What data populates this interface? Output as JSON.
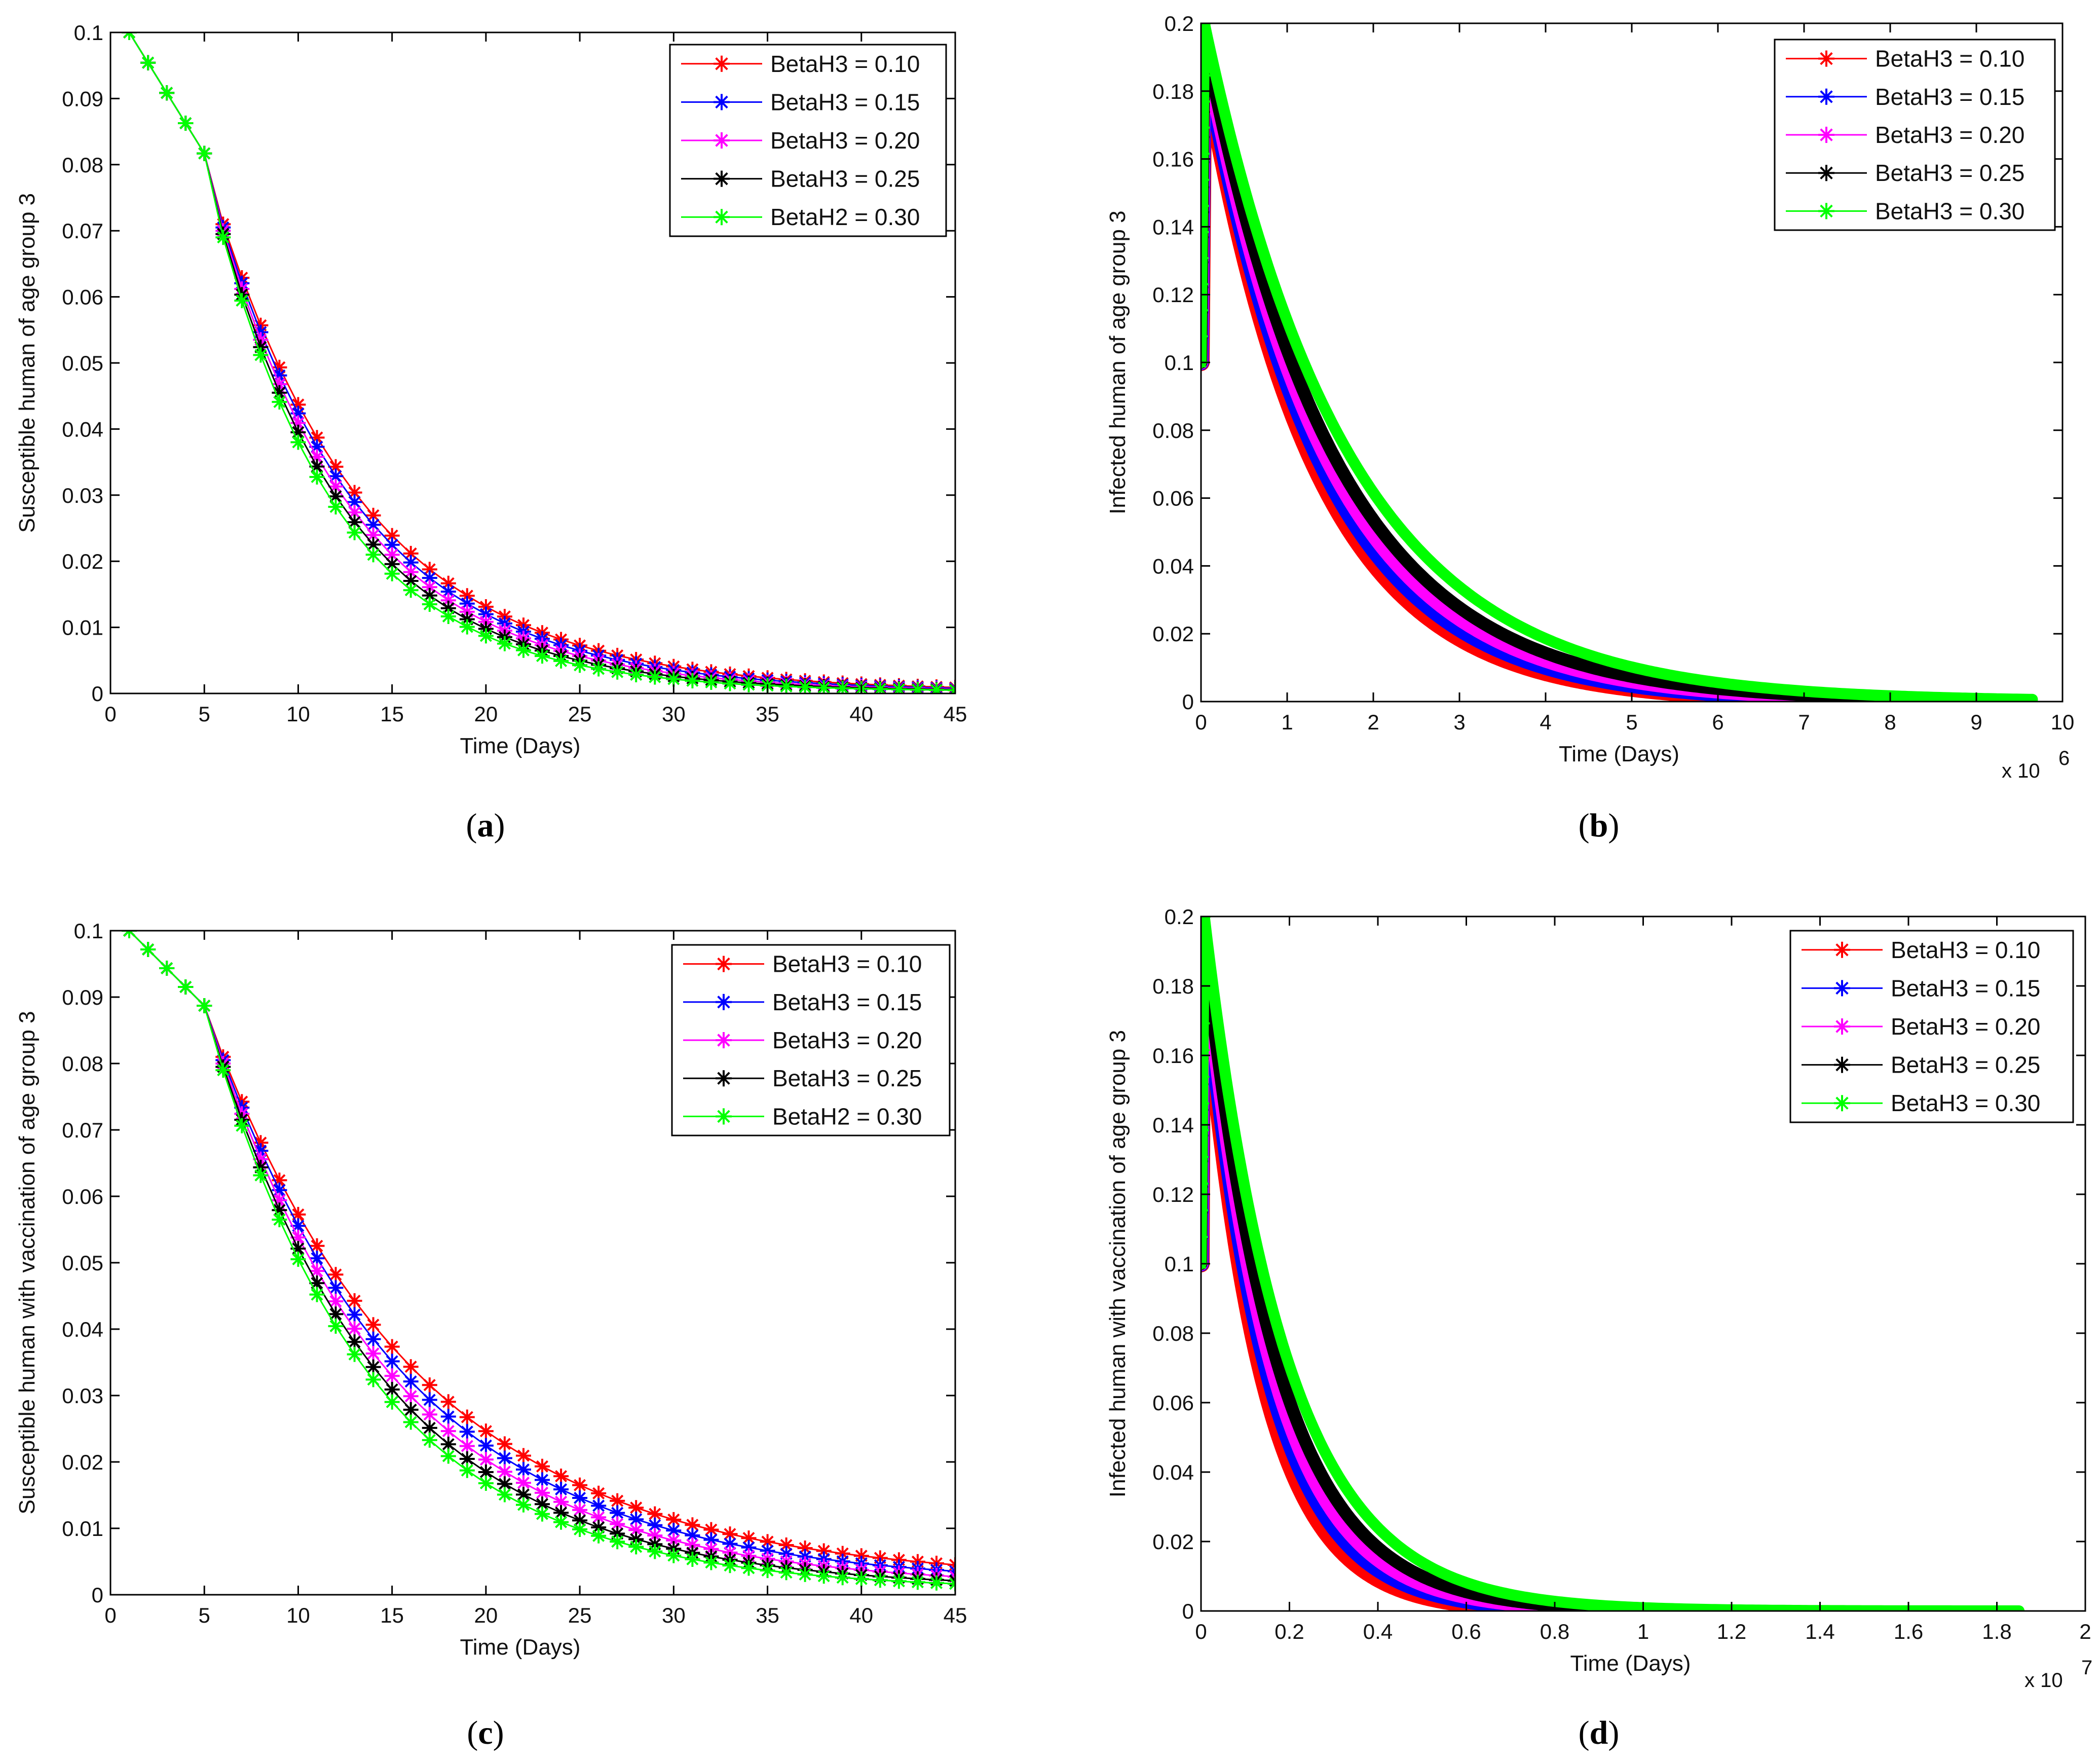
{
  "figure": {
    "panels": [
      {
        "id": "a",
        "caption_open": "(",
        "caption_letter": "a",
        "caption_close": ")"
      },
      {
        "id": "b",
        "caption_open": "(",
        "caption_letter": "b",
        "caption_close": ")"
      },
      {
        "id": "c",
        "caption_open": "(",
        "caption_letter": "c",
        "caption_close": ")"
      },
      {
        "id": "d",
        "caption_open": "(",
        "caption_letter": "d",
        "caption_close": ")"
      }
    ]
  },
  "colors": {
    "red": "#ff0000",
    "blue": "#0000ff",
    "magenta": "#ff00ff",
    "black": "#000000",
    "green": "#00ff00"
  },
  "chart_data": [
    {
      "panel": "a",
      "type": "line",
      "marker": "star",
      "xlabel": "Time (Days)",
      "ylabel": "Susceptible human  of age group 3",
      "xlim": [
        0,
        45
      ],
      "ylim": [
        0,
        0.1
      ],
      "xticks": [
        "0",
        "5",
        "10",
        "15",
        "20",
        "25",
        "30",
        "35",
        "40",
        "45"
      ],
      "yticks": [
        "0",
        "0.01",
        "0.02",
        "0.03",
        "0.04",
        "0.05",
        "0.06",
        "0.07",
        "0.08",
        "0.09",
        "0.1"
      ],
      "exponent_label": "",
      "legend_position": "top-right",
      "series": [
        {
          "name": "BetaH3 = 0.10",
          "color": "#ff0000",
          "model": "expo",
          "x0": 1,
          "x_end": 45,
          "n_points": 45,
          "y_start": 0.1,
          "y_knee": 0.0817,
          "x_knee": 5,
          "y_knee2": 0.071,
          "k": 0.122,
          "y_end": 0.0003
        },
        {
          "name": "BetaH3 = 0.15",
          "color": "#0000ff",
          "model": "expo",
          "x0": 1,
          "x_end": 45,
          "n_points": 45,
          "y_start": 0.1,
          "y_knee": 0.0817,
          "x_knee": 5,
          "y_knee2": 0.0705,
          "k": 0.128,
          "y_end": 0.0003
        },
        {
          "name": "BetaH3 = 0.20",
          "color": "#ff00ff",
          "model": "expo",
          "x0": 1,
          "x_end": 45,
          "n_points": 45,
          "y_start": 0.1,
          "y_knee": 0.0817,
          "x_knee": 5,
          "y_knee2": 0.07,
          "k": 0.135,
          "y_end": 0.0003
        },
        {
          "name": "BetaH3 = 0.25",
          "color": "#000000",
          "model": "expo",
          "x0": 1,
          "x_end": 45,
          "n_points": 45,
          "y_start": 0.1,
          "y_knee": 0.0817,
          "x_knee": 5,
          "y_knee2": 0.0695,
          "k": 0.142,
          "y_end": 0.0003
        },
        {
          "name": "BetaH2 = 0.30",
          "color": "#00ff00",
          "model": "expo",
          "x0": 1,
          "x_end": 45,
          "n_points": 45,
          "y_start": 0.1,
          "y_knee": 0.0817,
          "x_knee": 5,
          "y_knee2": 0.069,
          "k": 0.15,
          "y_end": 0.0003
        }
      ]
    },
    {
      "panel": "b",
      "type": "line",
      "marker": "star",
      "xlabel": "Time (Days)",
      "ylabel": "Infected human of age group 3",
      "xlim": [
        0,
        10
      ],
      "ylim": [
        0,
        0.2
      ],
      "xticks": [
        "0",
        "1",
        "2",
        "3",
        "4",
        "5",
        "6",
        "7",
        "8",
        "9",
        "10"
      ],
      "yticks": [
        "0",
        "0.02",
        "0.04",
        "0.06",
        "0.08",
        "0.1",
        "0.12",
        "0.14",
        "0.16",
        "0.18",
        "0.2"
      ],
      "exponent_label": "x 10",
      "exponent_power": "6",
      "legend_position": "top-right",
      "series": [
        {
          "name": "BetaH3 = 0.10",
          "color": "#ff0000",
          "model": "dense",
          "x_end": 7.6,
          "y_peak": 0.19,
          "k": 0.78
        },
        {
          "name": "BetaH3 = 0.15",
          "color": "#0000ff",
          "model": "dense",
          "x_end": 7.9,
          "y_peak": 0.192,
          "k": 0.74
        },
        {
          "name": "BetaH3 = 0.20",
          "color": "#ff00ff",
          "model": "dense",
          "x_end": 8.2,
          "y_peak": 0.194,
          "k": 0.7
        },
        {
          "name": "BetaH3 = 0.25",
          "color": "#000000",
          "model": "dense",
          "x_end": 8.8,
          "y_peak": 0.196,
          "k": 0.66
        },
        {
          "name": "BetaH3 = 0.30",
          "color": "#00ff00",
          "model": "dense",
          "x_end": 9.65,
          "y_peak": 0.2,
          "k": 0.6
        }
      ]
    },
    {
      "panel": "c",
      "type": "line",
      "marker": "star",
      "xlabel": "Time (Days)",
      "ylabel": "Susceptible human with vaccination of age group 3",
      "xlim": [
        0,
        45
      ],
      "ylim": [
        0,
        0.1
      ],
      "xticks": [
        "0",
        "5",
        "10",
        "15",
        "20",
        "25",
        "30",
        "35",
        "40",
        "45"
      ],
      "yticks": [
        "0",
        "0.01",
        "0.02",
        "0.03",
        "0.04",
        "0.05",
        "0.06",
        "0.07",
        "0.08",
        "0.09",
        "0.1"
      ],
      "exponent_label": "",
      "legend_position": "top-right",
      "series": [
        {
          "name": "BetaH3 = 0.10",
          "color": "#ff0000",
          "model": "expo",
          "x0": 1,
          "x_end": 45,
          "n_points": 45,
          "y_start": 0.1,
          "y_knee": 0.0887,
          "x_knee": 5,
          "y_knee2": 0.081,
          "k": 0.0895,
          "y_end": 0.0021
        },
        {
          "name": "BetaH3 = 0.15",
          "color": "#0000ff",
          "model": "expo",
          "x0": 1,
          "x_end": 45,
          "n_points": 45,
          "y_start": 0.1,
          "y_knee": 0.0887,
          "x_knee": 5,
          "y_knee2": 0.0805,
          "k": 0.095,
          "y_end": 0.0016
        },
        {
          "name": "BetaH3 = 0.20",
          "color": "#ff00ff",
          "model": "expo",
          "x0": 1,
          "x_end": 45,
          "n_points": 45,
          "y_start": 0.1,
          "y_knee": 0.0887,
          "x_knee": 5,
          "y_knee2": 0.08,
          "k": 0.101,
          "y_end": 0.0012
        },
        {
          "name": "BetaH3 = 0.25",
          "color": "#000000",
          "model": "expo",
          "x0": 1,
          "x_end": 45,
          "n_points": 45,
          "y_start": 0.1,
          "y_knee": 0.0887,
          "x_knee": 5,
          "y_knee2": 0.0795,
          "k": 0.107,
          "y_end": 0.0009
        },
        {
          "name": "BetaH2 = 0.30",
          "color": "#00ff00",
          "model": "expo",
          "x0": 1,
          "x_end": 45,
          "n_points": 45,
          "y_start": 0.1,
          "y_knee": 0.0887,
          "x_knee": 5,
          "y_knee2": 0.079,
          "k": 0.113,
          "y_end": 0.0007
        }
      ]
    },
    {
      "panel": "d",
      "type": "line",
      "marker": "star",
      "xlabel": "Time (Days)",
      "ylabel": "Infected human with vaccination of age group 3",
      "xlim": [
        0,
        2
      ],
      "ylim": [
        0,
        0.2
      ],
      "xticks": [
        "0",
        "0.2",
        "0.4",
        "0.6",
        "0.8",
        "1",
        "1.2",
        "1.4",
        "1.6",
        "1.8",
        "2"
      ],
      "yticks": [
        "0",
        "0.02",
        "0.04",
        "0.06",
        "0.08",
        "0.1",
        "0.12",
        "0.14",
        "0.16",
        "0.18",
        "0.2"
      ],
      "exponent_label": "x 10",
      "exponent_power": "7",
      "legend_position": "top-right",
      "series": [
        {
          "name": "BetaH3 = 0.10",
          "color": "#ff0000",
          "model": "dense",
          "x_end": 0.8,
          "y_peak": 0.19,
          "k": 7.6
        },
        {
          "name": "BetaH3 = 0.15",
          "color": "#0000ff",
          "model": "dense",
          "x_end": 0.87,
          "y_peak": 0.192,
          "k": 7.0
        },
        {
          "name": "BetaH3 = 0.20",
          "color": "#ff00ff",
          "model": "dense",
          "x_end": 0.95,
          "y_peak": 0.194,
          "k": 6.5
        },
        {
          "name": "BetaH3 = 0.25",
          "color": "#000000",
          "model": "dense",
          "x_end": 1.05,
          "y_peak": 0.196,
          "k": 6.0
        },
        {
          "name": "BetaH3 = 0.30",
          "color": "#00ff00",
          "model": "dense",
          "x_end": 1.85,
          "y_peak": 0.2,
          "k": 5.4
        }
      ]
    }
  ]
}
